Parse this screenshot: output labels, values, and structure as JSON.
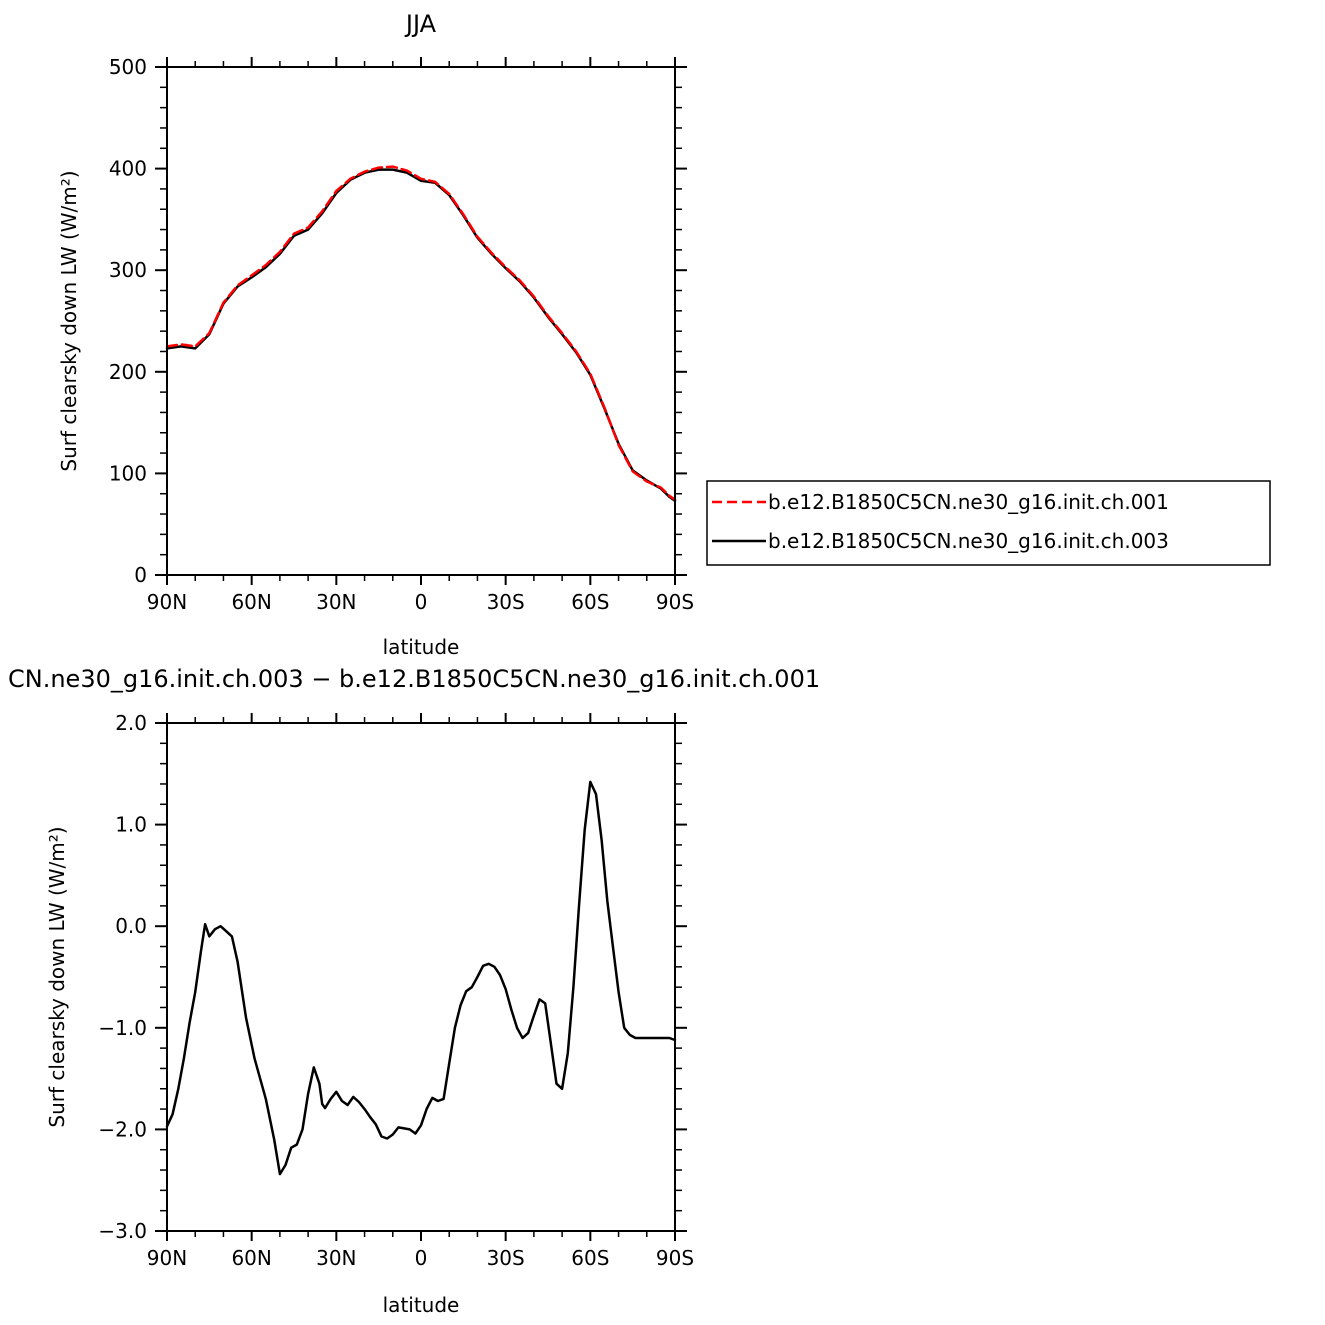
{
  "colors": {
    "run001": "#ff0000",
    "run003": "#000000"
  },
  "chart_data": [
    {
      "type": "line",
      "title": "JJA",
      "xlabel": "latitude",
      "ylabel": "Surf clearsky down LW (W/m²)",
      "xlim": [
        90,
        -90
      ],
      "ylim": [
        0,
        500
      ],
      "xticks": [
        90,
        60,
        30,
        0,
        -30,
        -60,
        -90
      ],
      "xtick_labels": [
        "90N",
        "60N",
        "30N",
        "0",
        "30S",
        "60S",
        "90S"
      ],
      "yticks": [
        0,
        100,
        200,
        300,
        400,
        500
      ],
      "ytick_labels": [
        "0",
        "100",
        "200",
        "300",
        "400",
        "500"
      ],
      "legend": "right",
      "series": [
        {
          "name": "b.e12.B1850C5CN.ne30_g16.init.ch.001",
          "color": "#ff0000",
          "style": "dashed",
          "x": [
            90,
            85,
            80,
            75,
            70,
            65,
            60,
            55,
            50,
            45,
            40,
            35,
            30,
            25,
            20,
            15,
            10,
            5,
            0,
            -5,
            -10,
            -15,
            -20,
            -25,
            -30,
            -35,
            -40,
            -45,
            -50,
            -55,
            -60,
            -65,
            -70,
            -75,
            -80,
            -85,
            -88,
            -90
          ],
          "y": [
            225,
            227,
            225,
            238,
            268,
            285,
            295,
            305,
            318,
            336,
            342,
            358,
            378,
            390,
            397,
            401,
            402,
            398,
            390,
            387,
            375,
            355,
            333,
            317,
            303,
            290,
            274,
            255,
            238,
            220,
            198,
            165,
            128,
            102,
            92,
            86,
            78,
            74
          ]
        },
        {
          "name": "b.e12.B1850C5CN.ne30_g16.init.ch.003",
          "color": "#000000",
          "style": "solid",
          "x": [
            90,
            85,
            80,
            75,
            70,
            65,
            60,
            55,
            50,
            45,
            40,
            35,
            30,
            25,
            20,
            15,
            10,
            5,
            0,
            -5,
            -10,
            -15,
            -20,
            -25,
            -30,
            -35,
            -40,
            -45,
            -50,
            -55,
            -60,
            -65,
            -70,
            -75,
            -80,
            -85,
            -88,
            -90
          ],
          "y": [
            223,
            225,
            223,
            237,
            267,
            284,
            293,
            303,
            316,
            334,
            340,
            356,
            376,
            389,
            396,
            399,
            399,
            396,
            388,
            386,
            374,
            354,
            332,
            316,
            302,
            289,
            273,
            254,
            237,
            219,
            197,
            164,
            129,
            103,
            93,
            85,
            77,
            73
          ]
        }
      ]
    },
    {
      "type": "line",
      "title": "CN.ne30_g16.init.ch.003 − b.e12.B1850C5CN.ne30_g16.init.ch.001",
      "xlabel": "latitude",
      "ylabel": "Surf clearsky down LW (W/m²)",
      "xlim": [
        90,
        -90
      ],
      "ylim": [
        -3.0,
        2.0
      ],
      "xticks": [
        90,
        60,
        30,
        0,
        -30,
        -60,
        -90
      ],
      "xtick_labels": [
        "90N",
        "60N",
        "30N",
        "0",
        "30S",
        "60S",
        "90S"
      ],
      "yticks": [
        -3.0,
        -2.0,
        -1.0,
        0.0,
        1.0,
        2.0
      ],
      "ytick_labels": [
        "−3.0",
        "−2.0",
        "−1.0",
        "0.0",
        "1.0",
        "2.0"
      ],
      "series": [
        {
          "color": "#000000",
          "style": "solid",
          "x": [
            90,
            88,
            86,
            84,
            82,
            80,
            78,
            76.5,
            75,
            73,
            71,
            69,
            67,
            65,
            62,
            59,
            55,
            52,
            50,
            48,
            46,
            44,
            42,
            40,
            38,
            36,
            35,
            34,
            32,
            30,
            28,
            26,
            24,
            22,
            20,
            18,
            16,
            14,
            12,
            10,
            8,
            6,
            4,
            2,
            0,
            -2,
            -4,
            -6,
            -8,
            -10,
            -12,
            -14,
            -16,
            -18,
            -20,
            -22,
            -24,
            -26,
            -28,
            -30,
            -32,
            -34,
            -36,
            -38,
            -40,
            -42,
            -44,
            -46,
            -48,
            -50,
            -52,
            -54,
            -56,
            -58,
            -60,
            -62,
            -64,
            -66,
            -68,
            -70,
            -72,
            -74,
            -76,
            -78,
            -80,
            -82,
            -84,
            -86,
            -88,
            -90
          ],
          "y": [
            -1.97,
            -1.85,
            -1.6,
            -1.3,
            -0.95,
            -0.65,
            -0.25,
            0.02,
            -0.1,
            -0.03,
            0.0,
            -0.05,
            -0.1,
            -0.35,
            -0.9,
            -1.3,
            -1.7,
            -2.1,
            -2.44,
            -2.35,
            -2.18,
            -2.15,
            -2.0,
            -1.65,
            -1.39,
            -1.55,
            -1.75,
            -1.79,
            -1.7,
            -1.63,
            -1.72,
            -1.76,
            -1.68,
            -1.73,
            -1.8,
            -1.88,
            -1.95,
            -2.07,
            -2.09,
            -2.05,
            -1.98,
            -1.99,
            -2.0,
            -2.04,
            -1.96,
            -1.8,
            -1.69,
            -1.72,
            -1.7,
            -1.35,
            -1.0,
            -0.78,
            -0.64,
            -0.6,
            -0.5,
            -0.39,
            -0.37,
            -0.4,
            -0.48,
            -0.62,
            -0.82,
            -1.0,
            -1.1,
            -1.05,
            -0.88,
            -0.72,
            -0.76,
            -1.15,
            -1.55,
            -1.6,
            -1.25,
            -0.6,
            0.2,
            0.95,
            1.42,
            1.3,
            0.85,
            0.25,
            -0.2,
            -0.65,
            -1.0,
            -1.07,
            -1.1,
            -1.1,
            -1.1,
            -1.1,
            -1.1,
            -1.1,
            -1.1,
            -1.12
          ]
        }
      ]
    }
  ]
}
